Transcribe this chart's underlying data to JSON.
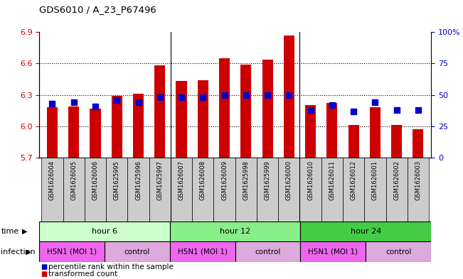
{
  "title": "GDS6010 / A_23_P67496",
  "samples": [
    "GSM1626004",
    "GSM1626005",
    "GSM1626006",
    "GSM1625995",
    "GSM1625996",
    "GSM1625997",
    "GSM1626007",
    "GSM1626008",
    "GSM1626009",
    "GSM1625998",
    "GSM1625999",
    "GSM1626000",
    "GSM1626010",
    "GSM1626011",
    "GSM1626012",
    "GSM1626001",
    "GSM1626002",
    "GSM1626003"
  ],
  "red_values": [
    6.18,
    6.19,
    6.17,
    6.29,
    6.31,
    6.58,
    6.43,
    6.44,
    6.65,
    6.59,
    6.64,
    6.87,
    6.2,
    6.22,
    6.01,
    6.18,
    6.01,
    5.97
  ],
  "blue_values": [
    43,
    44,
    41,
    46,
    44,
    48,
    48,
    48,
    50,
    50,
    50,
    50,
    38,
    42,
    37,
    44,
    38,
    38
  ],
  "ymin": 5.7,
  "ymax": 6.9,
  "yticks_left": [
    5.7,
    6.0,
    6.3,
    6.6,
    6.9
  ],
  "yticks_right": [
    0,
    25,
    50,
    75,
    100
  ],
  "ytick_labels_right": [
    "0",
    "25",
    "50",
    "75",
    "100%"
  ],
  "bar_bottom": 5.7,
  "bar_color": "#cc0000",
  "blue_color": "#0000cc",
  "time_groups": [
    {
      "label": "hour 6",
      "start": 0,
      "end": 6,
      "color": "#ccffcc"
    },
    {
      "label": "hour 12",
      "start": 6,
      "end": 12,
      "color": "#88ee88"
    },
    {
      "label": "hour 24",
      "start": 12,
      "end": 18,
      "color": "#44cc44"
    }
  ],
  "infection_groups": [
    {
      "label": "H5N1 (MOI 1)",
      "start": 0,
      "end": 3,
      "color": "#ee66ee"
    },
    {
      "label": "control",
      "start": 3,
      "end": 6,
      "color": "#ddaadd"
    },
    {
      "label": "H5N1 (MOI 1)",
      "start": 6,
      "end": 9,
      "color": "#ee66ee"
    },
    {
      "label": "control",
      "start": 9,
      "end": 12,
      "color": "#ddaadd"
    },
    {
      "label": "H5N1 (MOI 1)",
      "start": 12,
      "end": 15,
      "color": "#ee66ee"
    },
    {
      "label": "control",
      "start": 15,
      "end": 18,
      "color": "#ddaadd"
    }
  ],
  "sample_bg_color": "#cccccc",
  "bg_color": "#ffffff",
  "label_color_left": "#cc0000",
  "label_color_right": "#0000cc",
  "bar_width": 0.5,
  "blue_marker_size": 36,
  "group_sep": [
    5.5,
    11.5
  ],
  "fig_width": 6.51,
  "fig_height": 3.93
}
